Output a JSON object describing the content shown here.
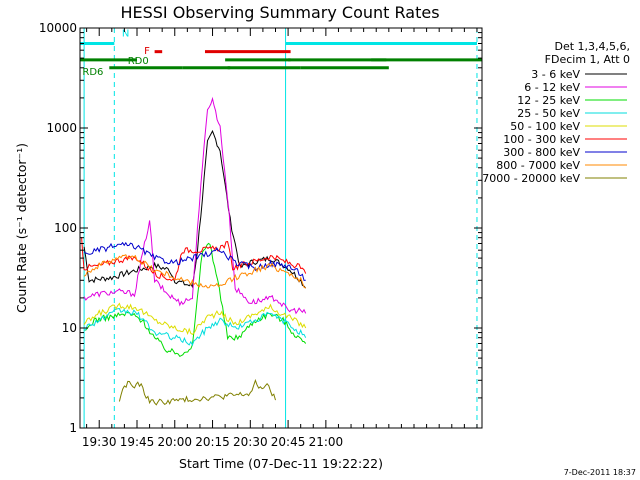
{
  "chart_data": {
    "type": "line",
    "title": "HESSI Observing Summary Count Rates",
    "xlabel": "Start Time (07-Dec-11 19:22:22)",
    "ylabel": "Count Rate (s⁻¹ detector⁻¹)",
    "yscale": "log",
    "xlim_min": [
      82.37,
      242.0
    ],
    "ylim": [
      1,
      10000
    ],
    "xticks_min": [
      90,
      105,
      120,
      135,
      150,
      165,
      180
    ],
    "xtick_labels": [
      "19:30",
      "19:45",
      "20:00",
      "20:15",
      "20:30",
      "20:45",
      "21:00"
    ],
    "yticks": [
      1,
      10,
      100,
      1000,
      10000
    ],
    "ytick_labels": [
      "1",
      "10",
      "100",
      "1000",
      "10000"
    ],
    "grid": false,
    "legend_position": "right",
    "legend_header": [
      "Det 1,3,4,5,6,",
      "FDecim 1, Att 0"
    ],
    "footer_date": "7-Dec-2011 18:37",
    "series": [
      {
        "name": "3 - 6 keV",
        "color": "#000000",
        "points": [
          [
            84,
            65
          ],
          [
            86,
            30
          ],
          [
            95,
            32
          ],
          [
            105,
            38
          ],
          [
            112,
            42
          ],
          [
            118,
            38
          ],
          [
            120,
            30
          ],
          [
            127,
            26
          ],
          [
            129,
            60
          ],
          [
            133,
            700
          ],
          [
            135,
            900
          ],
          [
            138,
            600
          ],
          [
            142,
            120
          ],
          [
            146,
            40
          ],
          [
            150,
            45
          ],
          [
            158,
            50
          ],
          [
            165,
            40
          ],
          [
            170,
            30
          ],
          [
            172,
            25
          ]
        ]
      },
      {
        "name": "6 - 12 keV",
        "color": "#e000e0",
        "points": [
          [
            84,
            20
          ],
          [
            90,
            22
          ],
          [
            98,
            23
          ],
          [
            104,
            22
          ],
          [
            110,
            120
          ],
          [
            112,
            30
          ],
          [
            117,
            22
          ],
          [
            122,
            18
          ],
          [
            127,
            20
          ],
          [
            129,
            100
          ],
          [
            133,
            1600
          ],
          [
            135,
            1900
          ],
          [
            138,
            1000
          ],
          [
            141,
            200
          ],
          [
            144,
            25
          ],
          [
            150,
            18
          ],
          [
            155,
            19
          ],
          [
            160,
            20
          ],
          [
            165,
            15
          ],
          [
            170,
            15
          ],
          [
            172,
            14
          ]
        ]
      },
      {
        "name": "12 - 25 keV",
        "color": "#00dd00",
        "points": [
          [
            84,
            9
          ],
          [
            88,
            12
          ],
          [
            95,
            13
          ],
          [
            102,
            14
          ],
          [
            107,
            12
          ],
          [
            112,
            8
          ],
          [
            117,
            6
          ],
          [
            122,
            5.5
          ],
          [
            127,
            6.5
          ],
          [
            131,
            60
          ],
          [
            134,
            70
          ],
          [
            137,
            30
          ],
          [
            141,
            8
          ],
          [
            145,
            8
          ],
          [
            152,
            12
          ],
          [
            158,
            14
          ],
          [
            163,
            12
          ],
          [
            167,
            9
          ],
          [
            172,
            7
          ]
        ]
      },
      {
        "name": "25 - 50 keV",
        "color": "#00dddd",
        "points": [
          [
            84,
            10
          ],
          [
            90,
            12
          ],
          [
            98,
            15
          ],
          [
            105,
            14
          ],
          [
            112,
            9
          ],
          [
            120,
            8
          ],
          [
            127,
            7
          ],
          [
            133,
            10
          ],
          [
            138,
            12
          ],
          [
            144,
            10
          ],
          [
            152,
            12
          ],
          [
            158,
            14
          ],
          [
            165,
            11
          ],
          [
            170,
            9
          ],
          [
            172,
            8
          ]
        ]
      },
      {
        "name": "50 - 100 keV",
        "color": "#dddd00",
        "points": [
          [
            84,
            11
          ],
          [
            90,
            14
          ],
          [
            98,
            17
          ],
          [
            105,
            16
          ],
          [
            112,
            12
          ],
          [
            120,
            10
          ],
          [
            127,
            9
          ],
          [
            133,
            13
          ],
          [
            138,
            14
          ],
          [
            144,
            11
          ],
          [
            152,
            14
          ],
          [
            158,
            16
          ],
          [
            165,
            13
          ],
          [
            170,
            11
          ],
          [
            172,
            10
          ]
        ]
      },
      {
        "name": "100 - 300 keV",
        "color": "#ff0000",
        "points": [
          [
            83,
            80
          ],
          [
            84,
            40
          ],
          [
            90,
            42
          ],
          [
            98,
            48
          ],
          [
            105,
            50
          ],
          [
            112,
            35
          ],
          [
            120,
            30
          ],
          [
            123,
            60
          ],
          [
            130,
            60
          ],
          [
            137,
            62
          ],
          [
            141,
            70
          ],
          [
            143,
            40
          ],
          [
            150,
            45
          ],
          [
            158,
            52
          ],
          [
            165,
            45
          ],
          [
            170,
            40
          ],
          [
            172,
            35
          ]
        ]
      },
      {
        "name": "300 - 800 keV",
        "color": "#0000cc",
        "points": [
          [
            84,
            55
          ],
          [
            90,
            60
          ],
          [
            98,
            68
          ],
          [
            105,
            65
          ],
          [
            112,
            50
          ],
          [
            120,
            45
          ],
          [
            127,
            50
          ],
          [
            133,
            55
          ],
          [
            138,
            60
          ],
          [
            144,
            45
          ],
          [
            152,
            40
          ],
          [
            158,
            44
          ],
          [
            165,
            42
          ],
          [
            170,
            35
          ],
          [
            172,
            30
          ]
        ]
      },
      {
        "name": "800 - 7000 keV",
        "color": "#ff8800",
        "points": [
          [
            84,
            35
          ],
          [
            90,
            42
          ],
          [
            98,
            52
          ],
          [
            105,
            50
          ],
          [
            112,
            38
          ],
          [
            120,
            32
          ],
          [
            127,
            28
          ],
          [
            133,
            26
          ],
          [
            138,
            26
          ],
          [
            144,
            32
          ],
          [
            152,
            38
          ],
          [
            158,
            42
          ],
          [
            165,
            36
          ],
          [
            170,
            30
          ],
          [
            172,
            25
          ]
        ]
      },
      {
        "name": "7000 - 20000 keV",
        "color": "#808000",
        "points": [
          [
            98,
            1.9
          ],
          [
            100,
            2.6
          ],
          [
            102,
            2.9
          ],
          [
            104,
            2.5
          ],
          [
            106,
            2.8
          ],
          [
            108,
            2.2
          ],
          [
            110,
            1.9
          ],
          [
            112,
            1.8
          ],
          [
            150,
            2.2
          ],
          [
            152,
            2.8
          ],
          [
            154,
            2.5
          ],
          [
            156,
            2.7
          ],
          [
            158,
            2.4
          ],
          [
            160,
            1.9
          ]
        ]
      }
    ],
    "segments": [
      {
        "name": "N",
        "color": "#00e5e5",
        "y": 7000,
        "ranges": [
          [
            82.37,
            96
          ],
          [
            164,
            240
          ]
        ]
      },
      {
        "name": "F",
        "color": "#e00000",
        "y": 5800,
        "ranges": [
          [
            112,
            115
          ],
          [
            132,
            166
          ]
        ]
      },
      {
        "name": "RD0",
        "color": "#008000",
        "y": 4800,
        "ranges": [
          [
            82.37,
            105
          ],
          [
            140,
            166
          ],
          [
            165,
            204
          ],
          [
            198,
            242
          ]
        ]
      },
      {
        "name": "RD6",
        "color": "#008000",
        "y": 4000,
        "ranges": [
          [
            94,
            123
          ],
          [
            123,
            142
          ],
          [
            141,
            170
          ],
          [
            170,
            205
          ]
        ]
      }
    ],
    "segment_labels": [
      {
        "text": "N",
        "color": "#00e5e5",
        "x": 100.5,
        "y": 9000
      },
      {
        "text": "F",
        "color": "#e00000",
        "x": 109,
        "y": 6000
      },
      {
        "text": "RD0",
        "color": "#008000",
        "x": 105.5,
        "y": 4800
      },
      {
        "text": "RD6",
        "color": "#008000",
        "x": 87.5,
        "y": 3700
      }
    ],
    "vlines": [
      {
        "x": 84,
        "color": "#00e5e5",
        "style": "solid"
      },
      {
        "x": 96,
        "color": "#00e5e5",
        "style": "dashed"
      },
      {
        "x": 164,
        "color": "#00e5e5",
        "style": "solid"
      },
      {
        "x": 240,
        "color": "#00e5e5",
        "style": "dashed"
      }
    ]
  }
}
